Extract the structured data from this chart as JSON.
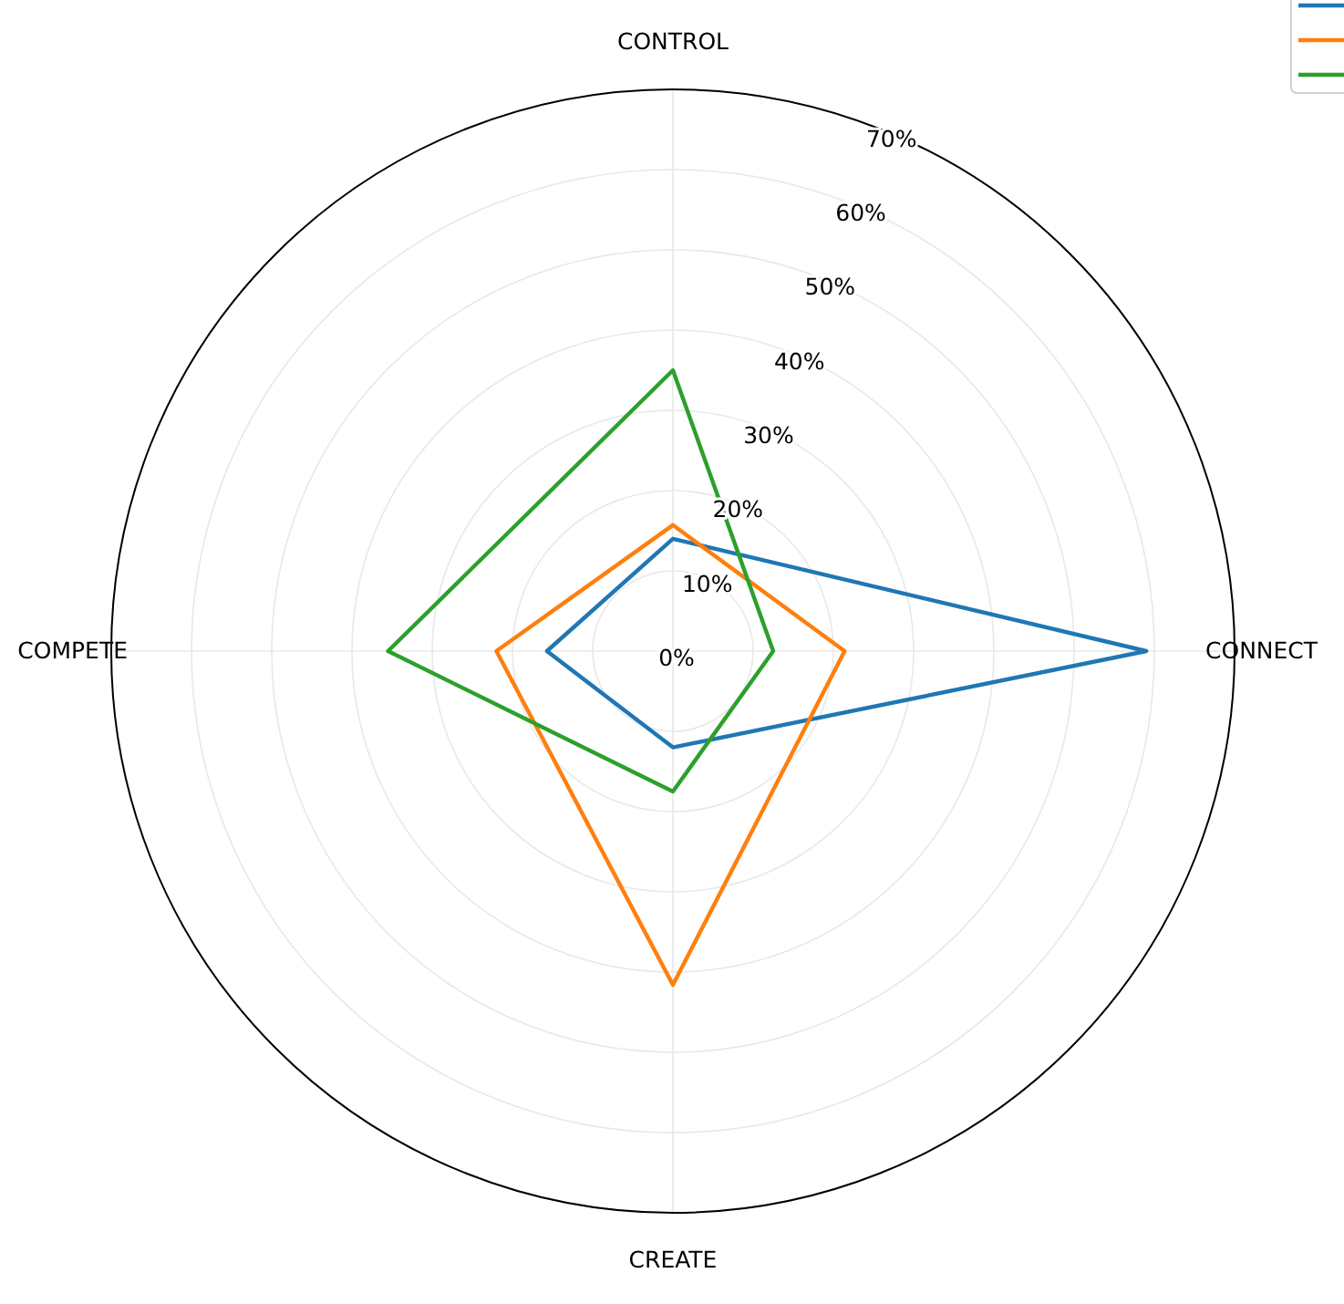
{
  "chart_data": {
    "type": "radar",
    "categories": [
      "CONTROL",
      "CONNECT",
      "CREATE",
      "COMPETE"
    ],
    "series": [
      {
        "color": "#1f77b4",
        "values": [
          14,
          59,
          12,
          15.7
        ]
      },
      {
        "color": "#ff7f0e",
        "values": [
          15.7,
          21.4,
          41.6,
          22
        ]
      },
      {
        "color": "#2ca02c",
        "values": [
          35,
          12.5,
          17.5,
          35.5
        ]
      }
    ],
    "ylim": [
      0,
      70
    ],
    "yticks": [
      {
        "value": 0,
        "label": "0%"
      },
      {
        "value": 10,
        "label": "10%"
      },
      {
        "value": 20,
        "label": "20%"
      },
      {
        "value": 30,
        "label": "30%"
      },
      {
        "value": 40,
        "label": "40%"
      },
      {
        "value": 50,
        "label": "50%"
      },
      {
        "value": 60,
        "label": "60%"
      },
      {
        "value": 70,
        "label": "70%"
      }
    ],
    "grid": true
  }
}
